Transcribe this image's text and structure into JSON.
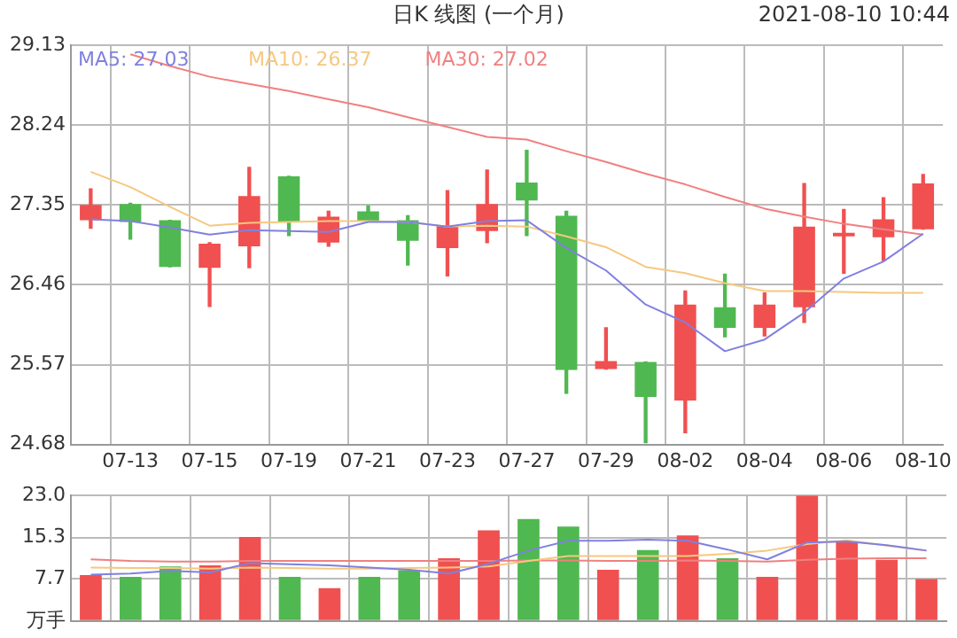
{
  "chart_data": [
    {
      "type": "candlestick",
      "title": "日K 线图 (一个月)",
      "annotations": [
        "2021-08-10 10:44"
      ],
      "categories": [
        null,
        "07-13",
        null,
        "07-15",
        null,
        "07-19",
        null,
        "07-21",
        null,
        "07-23",
        null,
        "07-27",
        null,
        "07-29",
        null,
        "08-02",
        null,
        "08-04",
        null,
        "08-06",
        null,
        "08-10"
      ],
      "ohlc": [
        [
          27.18,
          27.53,
          27.09,
          27.35
        ],
        [
          27.36,
          27.37,
          26.97,
          27.16
        ],
        [
          27.18,
          27.18,
          26.66,
          26.66
        ],
        [
          26.65,
          26.93,
          26.22,
          26.92
        ],
        [
          26.89,
          27.77,
          26.65,
          27.45
        ],
        [
          27.67,
          27.67,
          27.01,
          27.16
        ],
        [
          26.93,
          27.28,
          26.89,
          27.22
        ],
        [
          27.28,
          27.34,
          27.17,
          27.17
        ],
        [
          27.18,
          27.23,
          26.68,
          26.95
        ],
        [
          26.87,
          27.51,
          26.56,
          27.12
        ],
        [
          27.06,
          27.74,
          26.93,
          27.36
        ],
        [
          27.6,
          27.96,
          27.01,
          27.4
        ],
        [
          27.23,
          27.28,
          25.25,
          25.51
        ],
        [
          25.52,
          25.98,
          25.52,
          25.61
        ],
        [
          25.6,
          25.6,
          24.7,
          25.21
        ],
        [
          25.17,
          26.39,
          24.81,
          26.24
        ],
        [
          26.21,
          26.58,
          25.88,
          25.98
        ],
        [
          25.98,
          26.37,
          25.89,
          26.24
        ],
        [
          26.21,
          27.59,
          26.04,
          27.11
        ],
        [
          27.0,
          27.3,
          26.59,
          27.01
        ],
        [
          26.99,
          27.43,
          26.73,
          27.19
        ],
        [
          27.08,
          27.69,
          27.08,
          27.59
        ]
      ],
      "colors": [
        "#f05050",
        "#50b850",
        "#50b850",
        "#f05050",
        "#f05050",
        "#50b850",
        "#f05050",
        "#50b850",
        "#50b850",
        "#f05050",
        "#f05050",
        "#50b850",
        "#50b850",
        "#f05050",
        "#50b850",
        "#f05050",
        "#50b850",
        "#f05050",
        "#f05050",
        "#f05050",
        "#f05050",
        "#f05050"
      ],
      "series": [
        {
          "type": "line",
          "name": "MA5: 27.03",
          "color": "#8080e0",
          "values": [
            27.19,
            27.17,
            27.1,
            27.02,
            27.07,
            27.06,
            27.05,
            27.16,
            27.16,
            27.11,
            27.17,
            27.18,
            26.87,
            26.62,
            26.24,
            26.04,
            25.72,
            25.85,
            26.15,
            26.53,
            26.72,
            27.03
          ]
        },
        {
          "type": "line",
          "name": "MA10: 26.37",
          "color": "#f5c880",
          "values": [
            27.72,
            27.55,
            27.33,
            27.12,
            27.15,
            27.16,
            27.17,
            27.17,
            27.16,
            27.11,
            27.12,
            27.11,
            27.0,
            26.88,
            26.66,
            26.59,
            26.48,
            26.39,
            26.39,
            26.38,
            26.37,
            26.37
          ]
        },
        {
          "type": "line",
          "name": "MA30: 27.02",
          "color": "#f08080",
          "values": [
            null,
            29.03,
            28.9,
            28.78,
            28.7,
            28.62,
            28.53,
            28.44,
            28.33,
            28.22,
            28.11,
            28.08,
            27.95,
            27.83,
            27.7,
            27.58,
            27.44,
            27.31,
            27.22,
            27.14,
            27.08,
            27.02
          ]
        }
      ],
      "ylim": [
        24.68,
        29.13
      ],
      "yticks": [
        24.68,
        25.57,
        26.46,
        27.35,
        28.24,
        29.13
      ],
      "grid": true,
      "legend": "top left"
    },
    {
      "type": "bar",
      "categories": [
        null,
        null,
        null,
        null,
        null,
        null,
        null,
        null,
        null,
        null,
        null,
        null,
        null,
        null,
        null,
        null,
        null,
        null,
        null,
        null,
        null,
        null
      ],
      "values": [
        8.4,
        8.1,
        10.0,
        10.2,
        15.4,
        8.1,
        6.0,
        8.1,
        9.3,
        11.5,
        16.6,
        18.7,
        17.3,
        9.4,
        13.0,
        15.7,
        11.5,
        8.1,
        23.0,
        14.6,
        11.2,
        7.7
      ],
      "colors": [
        "#f05050",
        "#50b850",
        "#50b850",
        "#f05050",
        "#f05050",
        "#50b850",
        "#f05050",
        "#50b850",
        "#50b850",
        "#f05050",
        "#f05050",
        "#50b850",
        "#50b850",
        "#f05050",
        "#50b850",
        "#f05050",
        "#50b850",
        "#f05050",
        "#f05050",
        "#f05050",
        "#f05050",
        "#f05050"
      ],
      "series": [
        {
          "type": "line",
          "color": "#8080e0",
          "values": [
            8.5,
            8.7,
            9.2,
            8.9,
            10.6,
            10.4,
            10.2,
            9.8,
            9.4,
            8.7,
            10.5,
            12.9,
            14.7,
            14.7,
            14.9,
            14.7,
            13.1,
            11.3,
            14.4,
            14.6,
            13.9,
            12.9
          ]
        },
        {
          "type": "line",
          "color": "#f5c880",
          "values": [
            9.8,
            9.7,
            9.7,
            9.6,
            9.8,
            9.7,
            9.6,
            9.6,
            9.7,
            9.8,
            10.0,
            11.0,
            11.9,
            11.9,
            11.9,
            11.9,
            12.3,
            12.9,
            14.1,
            14.8,
            13.8,
            12.9
          ]
        },
        {
          "type": "line",
          "color": "#f08080",
          "values": [
            11.3,
            11.0,
            10.9,
            10.9,
            11.0,
            11.0,
            11.0,
            11.0,
            11.0,
            11.0,
            11.0,
            11.1,
            11.1,
            11.0,
            11.0,
            11.1,
            11.0,
            10.9,
            11.2,
            11.4,
            11.5,
            11.5
          ]
        }
      ],
      "ylim": [
        0,
        23
      ],
      "yticks": [
        {
          "value": 0,
          "label": "万手"
        },
        7.7,
        15.3,
        {
          "value": 23,
          "label": "23.0"
        }
      ],
      "grid": true,
      "tick_labels": "y"
    }
  ]
}
